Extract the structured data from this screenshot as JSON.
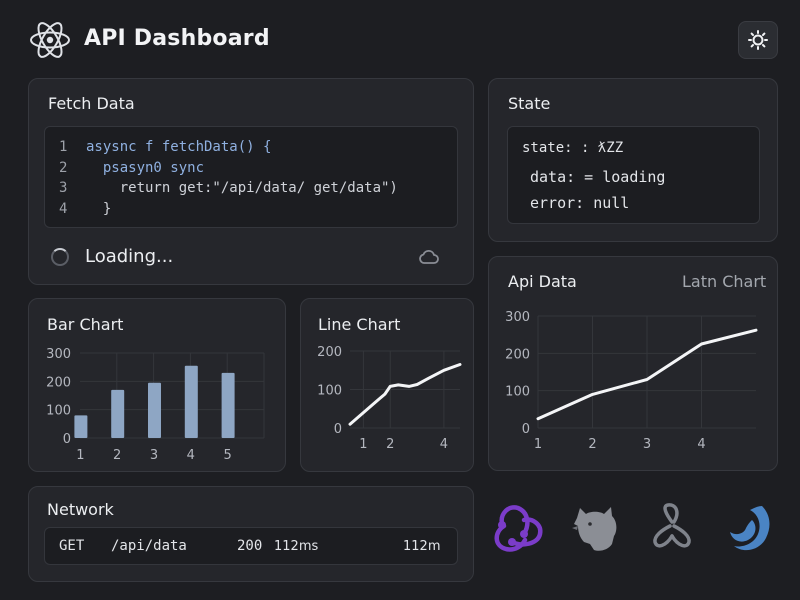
{
  "header": {
    "title": "API Dashboard",
    "logo_icon": "atom-icon",
    "theme_icon": "sun-icon"
  },
  "fetch_card": {
    "title": "Fetch Data",
    "code_lines": [
      {
        "num": "1",
        "text": "asysnc f fetchData() {"
      },
      {
        "num": "2",
        "text": "  psasyn0 sync"
      },
      {
        "num": "3",
        "text": "    return get:\"/api/data/ get/data\")"
      },
      {
        "num": "4",
        "text": "  }"
      }
    ],
    "status": "Loading...",
    "spinner_icon": "spinner-icon",
    "cloud_icon": "cloud-icon"
  },
  "state_card": {
    "title": "State",
    "lines": [
      "state: : ƛZZ",
      "data: = loading",
      "error: null"
    ]
  },
  "bar_chart_card": {
    "title": "Bar Chart"
  },
  "line_chart_card": {
    "title": "Line Chart"
  },
  "api_chart_card": {
    "title": "Api Data",
    "subtitle": "Latn Chart"
  },
  "network_card": {
    "title": "Network",
    "method": "GET",
    "path": "/api/data",
    "status": "200",
    "time": "112ms",
    "time2": "112m"
  },
  "brand_icons": [
    "redux-icon",
    "bear-icon",
    "react-query-icon",
    "swr-icon"
  ],
  "colors": {
    "background": "#1d1e22",
    "card": "#25262b",
    "bar": "#8ea6c4",
    "redux": "#7b3cc9",
    "swr": "#4a84c4"
  },
  "chart_data": [
    {
      "type": "bar",
      "title": "Bar Chart",
      "categories": [
        "1",
        "2",
        "3",
        "4",
        "5"
      ],
      "values": [
        80,
        170,
        195,
        255,
        230
      ],
      "yticks": [
        "0",
        "100",
        "200",
        "300"
      ],
      "ylim": [
        0,
        300
      ],
      "grid": true
    },
    {
      "type": "line",
      "title": "Line Chart",
      "x": [
        0.5,
        1,
        1.5,
        1.8,
        2,
        2.3,
        2.7,
        3,
        3.4,
        4,
        4.6
      ],
      "y": [
        10,
        40,
        70,
        88,
        108,
        112,
        108,
        113,
        128,
        150,
        165
      ],
      "xticks": [
        "1",
        "2",
        "4"
      ],
      "xtick_values": [
        1,
        2,
        4
      ],
      "yticks": [
        "0",
        "100",
        "200"
      ],
      "xlim": [
        0.5,
        4.6
      ],
      "ylim": [
        0,
        200
      ],
      "grid": true
    },
    {
      "type": "line",
      "title": "Api Data",
      "x": [
        1,
        2,
        3,
        4,
        5
      ],
      "y": [
        25,
        90,
        130,
        225,
        262
      ],
      "xticks": [
        "1",
        "2",
        "3",
        "4"
      ],
      "xtick_values": [
        1,
        2,
        3,
        4
      ],
      "yticks": [
        "0",
        "100",
        "200",
        "300"
      ],
      "xlim": [
        1,
        5
      ],
      "ylim": [
        0,
        300
      ],
      "grid": true
    }
  ]
}
